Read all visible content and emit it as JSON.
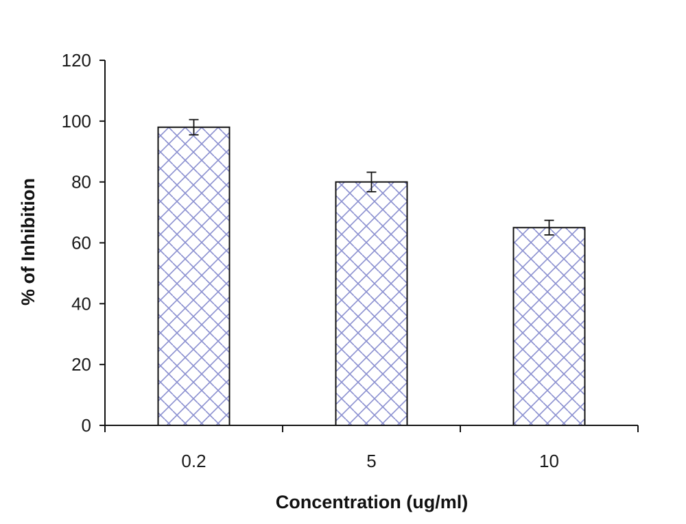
{
  "chart_data": {
    "type": "bar",
    "title": "",
    "xlabel": "Concentration (ug/ml)",
    "ylabel": "% of Inhibition",
    "categories": [
      "0.2",
      "5",
      "10"
    ],
    "values": [
      98,
      80,
      65
    ],
    "errors": [
      2.5,
      3.2,
      2.4
    ],
    "ylim": [
      0,
      120
    ],
    "yticks": [
      "0",
      "20",
      "40",
      "60",
      "80",
      "100",
      "120"
    ],
    "grid": false,
    "legend": "none",
    "colors": {
      "bar_fill": "#ffffff",
      "bar_hatch": "#8a8fd0",
      "bar_edge": "#111111",
      "axis": "#111111",
      "error_bar": "#111111"
    }
  }
}
